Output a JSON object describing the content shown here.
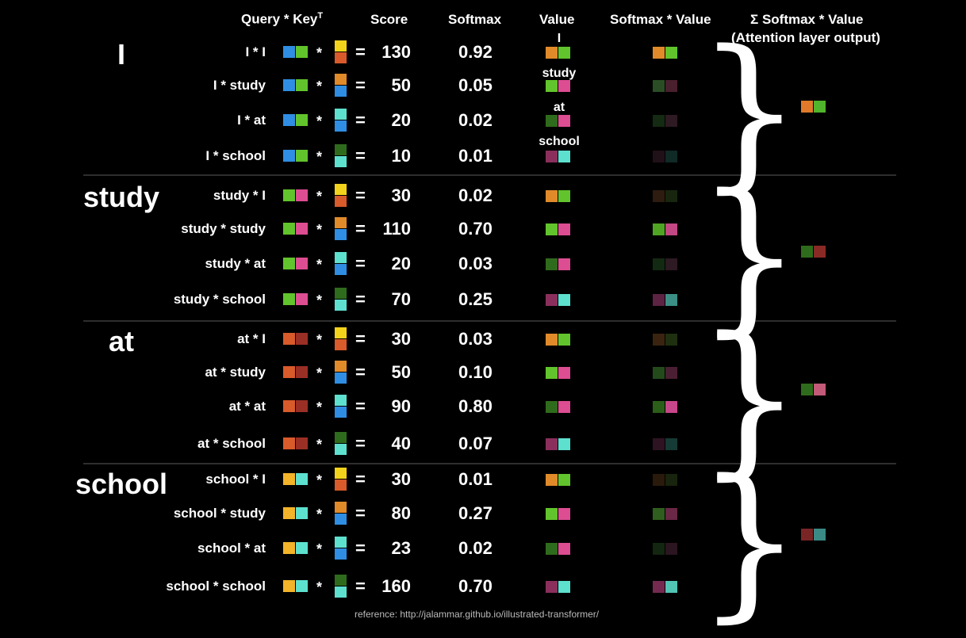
{
  "headers": {
    "query_key": "Query * Key",
    "transpose": "T",
    "score": "Score",
    "softmax": "Softmax",
    "value": "Value",
    "softmax_value": "Softmax * Value",
    "sum_symbol": "Σ",
    "sum_title": "Softmax * Value",
    "sum_subtitle": "(Attention layer output)"
  },
  "value_labels": [
    "I",
    "study",
    "at",
    "school"
  ],
  "symbols": {
    "mult": "*",
    "eq": "="
  },
  "reference": "reference: http://jalammar.github.io/illustrated-transformer/",
  "colors": {
    "orange": "#e08a2a",
    "green": "#62c42c",
    "blue": "#2f8ee3",
    "yellow": "#f3d21b",
    "red_orange": "#d95a2a",
    "cyan": "#5ee0cf",
    "dark_green": "#2f6b1c",
    "pink": "#dd4d92",
    "plum": "#8a2f5c",
    "dark_red": "#9a2f25"
  },
  "groups": [
    {
      "word": "I",
      "query_colors": [
        "#2f8ee3",
        "#62c42c"
      ],
      "output_colors": [
        "#e07a2a",
        "#50b42c"
      ],
      "rows": [
        {
          "label": "I * I",
          "key_colors": [
            "#f3d21b",
            "#d95a2a"
          ],
          "score": "130",
          "softmax": "0.92",
          "value_colors": [
            "#e08a2a",
            "#62c42c"
          ],
          "sv_colors": [
            "#e08a2a",
            "#62c42c"
          ]
        },
        {
          "label": "I * study",
          "key_colors": [
            "#e08a2a",
            "#2f8ee3"
          ],
          "score": "50",
          "softmax": "0.05",
          "value_colors": [
            "#62c42c",
            "#dd4d92"
          ],
          "sv_colors": [
            "#2b4d25",
            "#4a1f2e"
          ]
        },
        {
          "label": "I * at",
          "key_colors": [
            "#5ee0cf",
            "#2f8ee3"
          ],
          "score": "20",
          "softmax": "0.02",
          "value_colors": [
            "#2f6b1c",
            "#dd4d92"
          ],
          "sv_colors": [
            "#142a12",
            "#2e1a22"
          ]
        },
        {
          "label": "I * school",
          "key_colors": [
            "#2f6b1c",
            "#5ee0cf"
          ],
          "score": "10",
          "softmax": "0.01",
          "value_colors": [
            "#8a2f5c",
            "#5ee0cf"
          ],
          "sv_colors": [
            "#201018",
            "#102a26"
          ]
        }
      ]
    },
    {
      "word": "study",
      "query_colors": [
        "#62c42c",
        "#dd4d92"
      ],
      "output_colors": [
        "#2f6b1c",
        "#8a2a25"
      ],
      "rows": [
        {
          "label": "study * I",
          "key_colors": [
            "#f3d21b",
            "#d95a2a"
          ],
          "score": "30",
          "softmax": "0.02",
          "value_colors": [
            "#e08a2a",
            "#62c42c"
          ],
          "sv_colors": [
            "#2e1c10",
            "#18260f"
          ]
        },
        {
          "label": "study * study",
          "key_colors": [
            "#e08a2a",
            "#2f8ee3"
          ],
          "score": "110",
          "softmax": "0.70",
          "value_colors": [
            "#62c42c",
            "#dd4d92"
          ],
          "sv_colors": [
            "#4fa424",
            "#c24783"
          ]
        },
        {
          "label": "study * at",
          "key_colors": [
            "#5ee0cf",
            "#2f8ee3"
          ],
          "score": "20",
          "softmax": "0.03",
          "value_colors": [
            "#2f6b1c",
            "#dd4d92"
          ],
          "sv_colors": [
            "#132a12",
            "#2e1a22"
          ]
        },
        {
          "label": "study * school",
          "key_colors": [
            "#2f6b1c",
            "#5ee0cf"
          ],
          "score": "70",
          "softmax": "0.25",
          "value_colors": [
            "#8a2f5c",
            "#5ee0cf"
          ],
          "sv_colors": [
            "#5c2343",
            "#3b8f85"
          ]
        }
      ]
    },
    {
      "word": "at",
      "query_colors": [
        "#d95a2a",
        "#9a2f25"
      ],
      "output_colors": [
        "#2f6b1c",
        "#c25a78"
      ],
      "rows": [
        {
          "label": "at * I",
          "key_colors": [
            "#f3d21b",
            "#d95a2a"
          ],
          "score": "30",
          "softmax": "0.03",
          "value_colors": [
            "#e08a2a",
            "#62c42c"
          ],
          "sv_colors": [
            "#3a2410",
            "#1e300f"
          ]
        },
        {
          "label": "at * study",
          "key_colors": [
            "#e08a2a",
            "#2f8ee3"
          ],
          "score": "50",
          "softmax": "0.10",
          "value_colors": [
            "#62c42c",
            "#dd4d92"
          ],
          "sv_colors": [
            "#234a1b",
            "#4b1f33"
          ]
        },
        {
          "label": "at * at",
          "key_colors": [
            "#5ee0cf",
            "#2f8ee3"
          ],
          "score": "90",
          "softmax": "0.80",
          "value_colors": [
            "#2f6b1c",
            "#dd4d92"
          ],
          "sv_colors": [
            "#2a5e19",
            "#c8468a"
          ]
        },
        {
          "label": "at * school",
          "key_colors": [
            "#2f6b1c",
            "#5ee0cf"
          ],
          "score": "40",
          "softmax": "0.07",
          "value_colors": [
            "#8a2f5c",
            "#5ee0cf"
          ],
          "sv_colors": [
            "#2e1322",
            "#163a36"
          ]
        }
      ]
    },
    {
      "word": "school",
      "query_colors": [
        "#f3b42a",
        "#5ee0cf"
      ],
      "output_colors": [
        "#7a2525",
        "#3a8a86"
      ],
      "rows": [
        {
          "label": "school * I",
          "key_colors": [
            "#f3d21b",
            "#d95a2a"
          ],
          "score": "30",
          "softmax": "0.01",
          "value_colors": [
            "#e08a2a",
            "#62c42c"
          ],
          "sv_colors": [
            "#2a1a0c",
            "#18240d"
          ]
        },
        {
          "label": "school * study",
          "key_colors": [
            "#e08a2a",
            "#2f8ee3"
          ],
          "score": "80",
          "softmax": "0.27",
          "value_colors": [
            "#62c42c",
            "#dd4d92"
          ],
          "sv_colors": [
            "#2f5e1e",
            "#6a2746"
          ]
        },
        {
          "label": "school * at",
          "key_colors": [
            "#5ee0cf",
            "#2f8ee3"
          ],
          "score": "23",
          "softmax": "0.02",
          "value_colors": [
            "#2f6b1c",
            "#dd4d92"
          ],
          "sv_colors": [
            "#122610",
            "#2b1520"
          ]
        },
        {
          "label": "school * school",
          "key_colors": [
            "#2f6b1c",
            "#5ee0cf"
          ],
          "score": "160",
          "softmax": "0.70",
          "value_colors": [
            "#8a2f5c",
            "#5ee0cf"
          ],
          "sv_colors": [
            "#742a50",
            "#52c4b4"
          ]
        }
      ]
    }
  ]
}
